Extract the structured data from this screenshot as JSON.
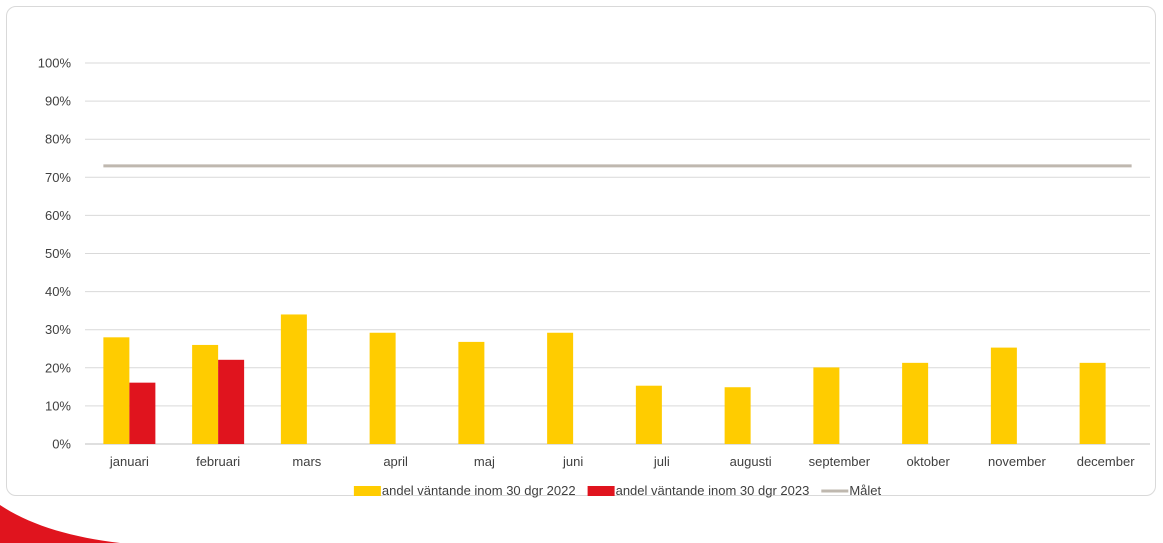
{
  "chart_data": {
    "type": "bar",
    "categories": [
      "januari",
      "februari",
      "mars",
      "april",
      "maj",
      "juni",
      "juli",
      "augusti",
      "september",
      "oktober",
      "november",
      "december"
    ],
    "series": [
      {
        "name": "andel väntande inom 30 dgr 2022",
        "kind": "bar",
        "color": "#FFCC00",
        "values": [
          28,
          26,
          34,
          29.2,
          26.8,
          29.2,
          15.3,
          14.9,
          20.1,
          21.3,
          25.3,
          21.3
        ]
      },
      {
        "name": "andel väntande inom 30 dgr 2023",
        "kind": "bar",
        "color": "#E0141E",
        "values": [
          16.1,
          22.1,
          null,
          null,
          null,
          null,
          null,
          null,
          null,
          null,
          null,
          null
        ]
      },
      {
        "name": "Målet",
        "kind": "line",
        "color": "#BFB8AF",
        "values": [
          73,
          73,
          73,
          73,
          73,
          73,
          73,
          73,
          73,
          73,
          73,
          73
        ]
      }
    ],
    "y_ticks": [
      "0%",
      "10%",
      "20%",
      "30%",
      "40%",
      "50%",
      "60%",
      "70%",
      "80%",
      "90%",
      "100%"
    ],
    "ylim": [
      0,
      100
    ],
    "grid": true,
    "legend_position": "bottom",
    "decoration_color": "#E0141E"
  }
}
